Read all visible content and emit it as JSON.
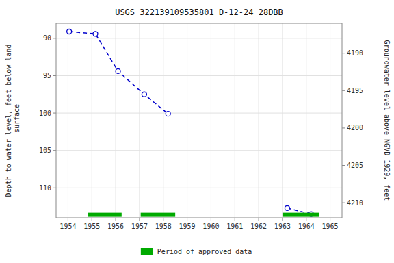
{
  "chart_data": {
    "type": "line",
    "title": "USGS 322139109535801 D-12-24 28DBB",
    "ylabel": "Depth to water level, feet below land\n surface",
    "y2label": "Groundwater level above NGVD 1929, feet",
    "xlim": [
      1953.5,
      1965.5
    ],
    "ylim": [
      114.0,
      88.0
    ],
    "y2lim": [
      4212.0,
      4186.0
    ],
    "xticks": [
      1954,
      1955,
      1956,
      1957,
      1958,
      1959,
      1960,
      1961,
      1962,
      1963,
      1964,
      1965
    ],
    "yticks": [
      90,
      95,
      100,
      105,
      110
    ],
    "y2ticks": [
      4210,
      4205,
      4200,
      4195,
      4190
    ],
    "grid": true,
    "legend": "bottom",
    "series": [
      {
        "type": "line",
        "color": "#0000cc",
        "line_style": "dashed",
        "marker": "circle",
        "x": [
          1954.05,
          1955.15,
          1956.1,
          1957.2,
          1958.2
        ],
        "values": [
          89.1,
          89.4,
          94.4,
          97.5,
          100.1
        ]
      },
      {
        "type": "line",
        "color": "#0000cc",
        "line_style": "dashed",
        "marker": "circle",
        "x": [
          1963.2,
          1964.2
        ],
        "values": [
          112.7,
          113.5
        ]
      },
      {
        "type": "range",
        "name": "Period of approved data",
        "color": "#00aa00",
        "x_start": [
          1954.85,
          1957.05,
          1963.0
        ],
        "x_end": [
          1956.25,
          1958.5,
          1964.55
        ],
        "values": [
          113.6,
          113.6,
          113.6
        ]
      }
    ]
  }
}
